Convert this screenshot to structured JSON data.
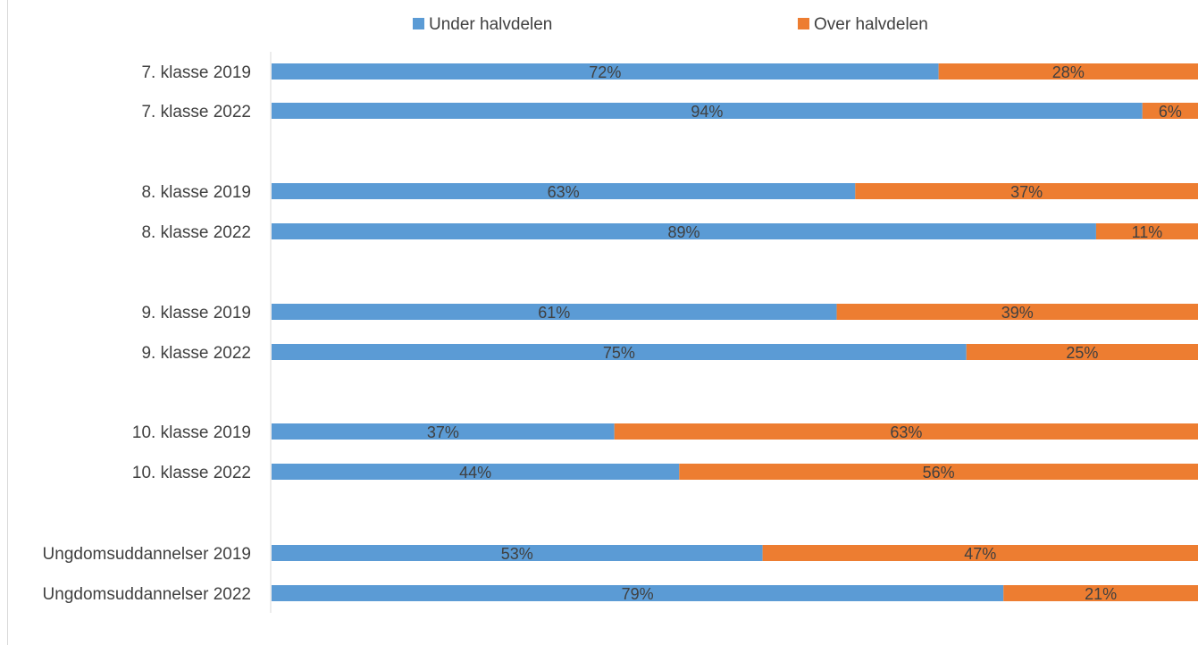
{
  "chart_data": {
    "type": "bar",
    "orientation": "horizontal",
    "stacked": true,
    "normalized_percent": true,
    "categories": [
      "7. klasse 2019",
      "7. klasse 2022",
      "8. klasse  2019",
      "8. klasse 2022",
      "9. klasse 2019",
      "9. klasse 2022",
      "10. klasse 2019",
      "10. klasse 2022",
      "Ungdomsuddannelser 2019",
      "Ungdomsuddannelser 2022"
    ],
    "series": [
      {
        "name": "Under halvdelen",
        "color": "#5b9bd5",
        "values": [
          72,
          94,
          63,
          89,
          61,
          75,
          37,
          44,
          53,
          79
        ],
        "labels": [
          "72%",
          "94%",
          "63%",
          "89%",
          "61%",
          "75%",
          "37%",
          "44%",
          "53%",
          "79%"
        ]
      },
      {
        "name": "Over halvdelen",
        "color": "#ed7d31",
        "values": [
          28,
          6,
          37,
          11,
          39,
          25,
          63,
          56,
          47,
          21
        ],
        "labels": [
          "28%",
          "6%",
          "37%",
          "11%",
          "39%",
          "25%",
          "63%",
          "56%",
          "47%",
          "21%"
        ]
      }
    ],
    "xlim": [
      0,
      100
    ],
    "title": "",
    "xlabel": "",
    "ylabel": "",
    "grid": false,
    "legend": "top-center"
  }
}
